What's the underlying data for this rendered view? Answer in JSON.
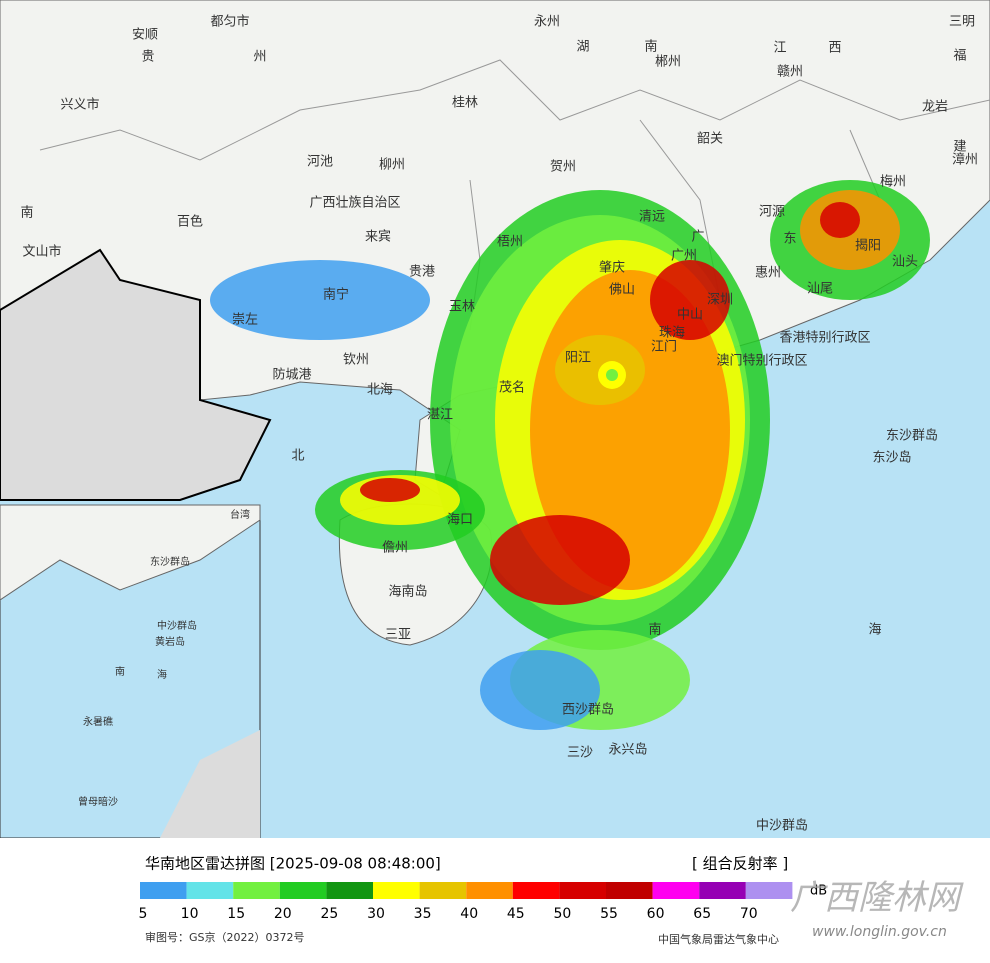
{
  "map_labels": [
    "都匀市",
    "安顺",
    "贵",
    "州",
    "兴义市",
    "河池",
    "柳州",
    "桂林",
    "永州",
    "湖",
    "南",
    "郴州",
    "江",
    "西",
    "赣州",
    "三明",
    "福",
    "龙岩",
    "建",
    "漳州",
    "梅州",
    "韶关",
    "贺州",
    "百色",
    "广西壮族自治区",
    "来宾",
    "清远",
    "广",
    "东",
    "河源",
    "揭阳",
    "汕头",
    "梧州",
    "肇庆",
    "广州",
    "惠州",
    "汕尾",
    "佛山",
    "深圳",
    "中山",
    "珠海",
    "江门",
    "香港特别行政区",
    "澳门特别行政区",
    "南宁",
    "贵港",
    "玉林",
    "崇左",
    "钦州",
    "防城港",
    "北海",
    "湛江",
    "阳江",
    "茂名",
    "东沙群岛",
    "东沙岛",
    "海口",
    "儋州",
    "海南岛",
    "三亚",
    "南",
    "海",
    "西沙群岛",
    "三沙",
    "永兴岛",
    "中沙群岛",
    "北",
    "文山市",
    "南"
  ],
  "inset_labels": [
    "南",
    "海",
    "永暑礁",
    "曾母暗沙",
    "黄岩岛",
    "中沙群岛",
    "东沙群岛",
    "台湾"
  ],
  "legend": {
    "title": "华南地区雷达拼图 [2025-09-08 08:48:00]",
    "product": "[ 组合反射率 ]",
    "unit": "dB",
    "values": [
      5,
      10,
      15,
      20,
      25,
      30,
      35,
      40,
      45,
      50,
      55,
      60,
      65,
      70
    ],
    "colors": [
      "#3f9ff0",
      "#63e3e8",
      "#72f040",
      "#22cc22",
      "#129612",
      "#ffff00",
      "#e6c400",
      "#ff9000",
      "#ff0000",
      "#d60000",
      "#c00000",
      "#ff00f0",
      "#9600b4",
      "#ad90f0"
    ]
  },
  "footer": {
    "approval": "审图号：GS京（2022）0372号",
    "agency": "中国气象局雷达气象中心",
    "watermark": "广西隆林网",
    "url": "www.longlin.gov.cn"
  }
}
